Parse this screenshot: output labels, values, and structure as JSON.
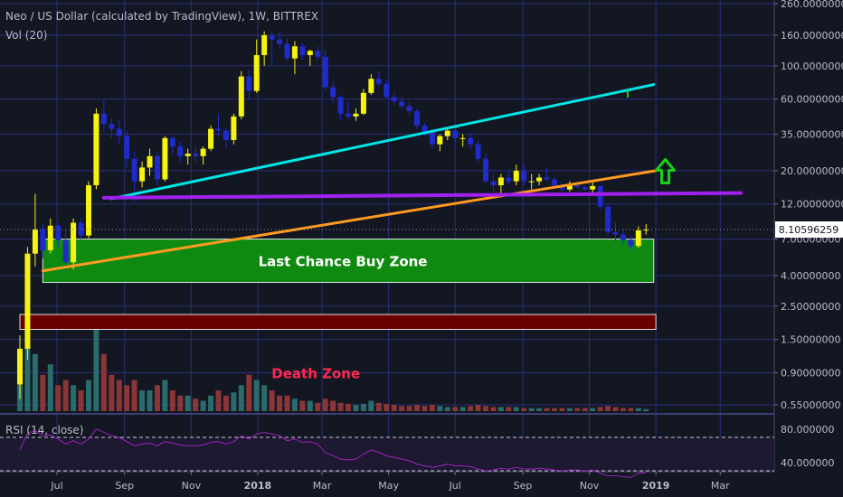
{
  "header": {
    "title": "Neo / US Dollar (calculated by TradingView), 1W, BITTREX",
    "volume_label": "Vol (20)",
    "rsi_label": "RSI (14, close)"
  },
  "chart_data": {
    "type": "candlestick",
    "y_scale": "log",
    "ylim": [
      0.52,
      260
    ],
    "y_ticks": [
      {
        "label": "260.00000000",
        "value": 260
      },
      {
        "label": "160.00000000",
        "value": 160
      },
      {
        "label": "100.00000000",
        "value": 100
      },
      {
        "label": "60.00000000",
        "value": 60
      },
      {
        "label": "35.00000000",
        "value": 35
      },
      {
        "label": "20.00000000",
        "value": 20
      },
      {
        "label": "12.00000000",
        "value": 12
      },
      {
        "label": "7.00000000",
        "value": 7
      },
      {
        "label": "4.00000000",
        "value": 4
      },
      {
        "label": "2.50000000",
        "value": 2.5
      },
      {
        "label": "1.50000000",
        "value": 1.5
      },
      {
        "label": "0.90000000",
        "value": 0.9
      },
      {
        "label": "0.55000000",
        "value": 0.55
      }
    ],
    "x_ticks": [
      {
        "label": "Jul",
        "date": "2017-07-01",
        "bold": false
      },
      {
        "label": "Sep",
        "date": "2017-09-01",
        "bold": false
      },
      {
        "label": "Nov",
        "date": "2017-11-01",
        "bold": false
      },
      {
        "label": "2018",
        "date": "2018-01-01",
        "bold": true
      },
      {
        "label": "Mar",
        "date": "2018-03-01",
        "bold": false
      },
      {
        "label": "May",
        "date": "2018-05-01",
        "bold": false
      },
      {
        "label": "Jul",
        "date": "2018-07-01",
        "bold": false
      },
      {
        "label": "Sep",
        "date": "2018-09-01",
        "bold": false
      },
      {
        "label": "Nov",
        "date": "2018-11-01",
        "bold": false
      },
      {
        "label": "2019",
        "date": "2019-01-01",
        "bold": true
      },
      {
        "label": "Mar",
        "date": "2019-03-01",
        "bold": false
      }
    ],
    "last_price": "8.10596259",
    "last_value": 8.106,
    "candles": [
      {
        "d": "2017-05-28",
        "o": 0.75,
        "h": 1.6,
        "l": 0.6,
        "c": 1.3
      },
      {
        "d": "2017-06-04",
        "o": 1.3,
        "h": 6.2,
        "l": 1.1,
        "c": 5.6
      },
      {
        "d": "2017-06-11",
        "o": 5.6,
        "h": 14,
        "l": 4.6,
        "c": 8.1
      },
      {
        "d": "2017-06-18",
        "o": 8.1,
        "h": 8.9,
        "l": 5.2,
        "c": 5.9
      },
      {
        "d": "2017-06-25",
        "o": 5.9,
        "h": 9.6,
        "l": 5.6,
        "c": 8.6
      },
      {
        "d": "2017-07-02",
        "o": 8.6,
        "h": 9.0,
        "l": 6.2,
        "c": 6.9
      },
      {
        "d": "2017-07-09",
        "o": 6.9,
        "h": 8.1,
        "l": 4.3,
        "c": 4.9
      },
      {
        "d": "2017-07-16",
        "o": 4.9,
        "h": 9.6,
        "l": 4.4,
        "c": 9.0
      },
      {
        "d": "2017-07-23",
        "o": 9.0,
        "h": 9.6,
        "l": 7.0,
        "c": 7.4
      },
      {
        "d": "2017-07-30",
        "o": 7.4,
        "h": 17,
        "l": 7.1,
        "c": 16
      },
      {
        "d": "2017-08-06",
        "o": 16,
        "h": 52,
        "l": 15,
        "c": 48
      },
      {
        "d": "2017-08-13",
        "o": 48,
        "h": 60,
        "l": 36,
        "c": 41
      },
      {
        "d": "2017-08-20",
        "o": 41,
        "h": 45,
        "l": 33,
        "c": 38
      },
      {
        "d": "2017-08-27",
        "o": 38,
        "h": 44,
        "l": 30,
        "c": 34
      },
      {
        "d": "2017-09-03",
        "o": 34,
        "h": 37,
        "l": 21,
        "c": 24
      },
      {
        "d": "2017-09-10",
        "o": 24,
        "h": 27,
        "l": 12.5,
        "c": 17
      },
      {
        "d": "2017-09-17",
        "o": 17,
        "h": 23,
        "l": 15.5,
        "c": 21
      },
      {
        "d": "2017-09-24",
        "o": 21,
        "h": 28,
        "l": 18.5,
        "c": 25
      },
      {
        "d": "2017-10-01",
        "o": 25,
        "h": 27,
        "l": 16,
        "c": 17.5
      },
      {
        "d": "2017-10-08",
        "o": 17.5,
        "h": 34,
        "l": 17,
        "c": 33
      },
      {
        "d": "2017-10-15",
        "o": 33,
        "h": 34,
        "l": 26,
        "c": 29
      },
      {
        "d": "2017-10-22",
        "o": 29,
        "h": 31,
        "l": 23,
        "c": 25
      },
      {
        "d": "2017-10-29",
        "o": 25,
        "h": 28,
        "l": 22,
        "c": 26
      },
      {
        "d": "2017-11-05",
        "o": 26,
        "h": 29,
        "l": 23,
        "c": 25
      },
      {
        "d": "2017-11-12",
        "o": 25,
        "h": 29,
        "l": 22,
        "c": 28
      },
      {
        "d": "2017-11-19",
        "o": 28,
        "h": 40,
        "l": 27,
        "c": 38
      },
      {
        "d": "2017-11-26",
        "o": 38,
        "h": 48,
        "l": 34,
        "c": 37
      },
      {
        "d": "2017-12-03",
        "o": 37,
        "h": 39,
        "l": 28,
        "c": 32
      },
      {
        "d": "2017-12-10",
        "o": 32,
        "h": 48,
        "l": 30,
        "c": 46
      },
      {
        "d": "2017-12-17",
        "o": 46,
        "h": 92,
        "l": 44,
        "c": 85
      },
      {
        "d": "2017-12-24",
        "o": 85,
        "h": 95,
        "l": 60,
        "c": 68
      },
      {
        "d": "2017-12-31",
        "o": 68,
        "h": 150,
        "l": 66,
        "c": 118
      },
      {
        "d": "2018-01-07",
        "o": 118,
        "h": 170,
        "l": 100,
        "c": 160
      },
      {
        "d": "2018-01-14",
        "o": 160,
        "h": 168,
        "l": 100,
        "c": 150
      },
      {
        "d": "2018-01-21",
        "o": 150,
        "h": 168,
        "l": 130,
        "c": 140
      },
      {
        "d": "2018-01-28",
        "o": 140,
        "h": 152,
        "l": 108,
        "c": 112
      },
      {
        "d": "2018-02-04",
        "o": 112,
        "h": 146,
        "l": 88,
        "c": 135
      },
      {
        "d": "2018-02-11",
        "o": 135,
        "h": 142,
        "l": 110,
        "c": 118
      },
      {
        "d": "2018-02-18",
        "o": 118,
        "h": 128,
        "l": 100,
        "c": 126
      },
      {
        "d": "2018-02-25",
        "o": 126,
        "h": 135,
        "l": 108,
        "c": 115
      },
      {
        "d": "2018-03-04",
        "o": 115,
        "h": 128,
        "l": 68,
        "c": 72
      },
      {
        "d": "2018-03-11",
        "o": 72,
        "h": 78,
        "l": 56,
        "c": 62
      },
      {
        "d": "2018-03-18",
        "o": 62,
        "h": 64,
        "l": 44,
        "c": 48
      },
      {
        "d": "2018-03-25",
        "o": 48,
        "h": 58,
        "l": 44,
        "c": 46
      },
      {
        "d": "2018-04-01",
        "o": 46,
        "h": 52,
        "l": 43,
        "c": 48
      },
      {
        "d": "2018-04-08",
        "o": 48,
        "h": 70,
        "l": 47,
        "c": 66
      },
      {
        "d": "2018-04-15",
        "o": 66,
        "h": 88,
        "l": 64,
        "c": 82
      },
      {
        "d": "2018-04-22",
        "o": 82,
        "h": 92,
        "l": 72,
        "c": 76
      },
      {
        "d": "2018-04-29",
        "o": 76,
        "h": 82,
        "l": 60,
        "c": 62
      },
      {
        "d": "2018-05-06",
        "o": 62,
        "h": 66,
        "l": 55,
        "c": 58
      },
      {
        "d": "2018-05-13",
        "o": 58,
        "h": 62,
        "l": 52,
        "c": 54
      },
      {
        "d": "2018-05-20",
        "o": 54,
        "h": 58,
        "l": 47,
        "c": 50
      },
      {
        "d": "2018-05-27",
        "o": 50,
        "h": 52,
        "l": 38,
        "c": 40
      },
      {
        "d": "2018-06-03",
        "o": 40,
        "h": 42,
        "l": 34,
        "c": 36
      },
      {
        "d": "2018-06-10",
        "o": 36,
        "h": 38,
        "l": 28,
        "c": 30
      },
      {
        "d": "2018-06-17",
        "o": 30,
        "h": 35,
        "l": 27,
        "c": 34
      },
      {
        "d": "2018-06-24",
        "o": 34,
        "h": 38,
        "l": 32,
        "c": 37
      },
      {
        "d": "2018-07-01",
        "o": 37,
        "h": 38,
        "l": 30,
        "c": 33
      },
      {
        "d": "2018-07-08",
        "o": 33,
        "h": 35,
        "l": 29,
        "c": 33
      },
      {
        "d": "2018-07-15",
        "o": 33,
        "h": 36,
        "l": 28,
        "c": 30
      },
      {
        "d": "2018-07-22",
        "o": 30,
        "h": 32,
        "l": 23,
        "c": 24
      },
      {
        "d": "2018-07-29",
        "o": 24,
        "h": 26,
        "l": 16.5,
        "c": 17
      },
      {
        "d": "2018-08-05",
        "o": 17,
        "h": 19,
        "l": 14.5,
        "c": 16
      },
      {
        "d": "2018-08-12",
        "o": 16,
        "h": 19,
        "l": 14,
        "c": 18
      },
      {
        "d": "2018-08-19",
        "o": 18,
        "h": 20,
        "l": 16,
        "c": 17
      },
      {
        "d": "2018-08-26",
        "o": 17,
        "h": 22,
        "l": 16,
        "c": 20
      },
      {
        "d": "2018-09-02",
        "o": 20,
        "h": 22,
        "l": 16,
        "c": 17
      },
      {
        "d": "2018-09-09",
        "o": 17,
        "h": 19,
        "l": 15,
        "c": 17
      },
      {
        "d": "2018-09-16",
        "o": 17,
        "h": 19,
        "l": 16,
        "c": 18
      },
      {
        "d": "2018-09-23",
        "o": 18,
        "h": 21,
        "l": 17,
        "c": 17.5
      },
      {
        "d": "2018-09-30",
        "o": 17.5,
        "h": 18,
        "l": 15.5,
        "c": 16
      },
      {
        "d": "2018-10-07",
        "o": 16,
        "h": 16.5,
        "l": 14.5,
        "c": 15
      },
      {
        "d": "2018-10-14",
        "o": 15,
        "h": 17,
        "l": 14.5,
        "c": 16
      },
      {
        "d": "2018-10-21",
        "o": 16,
        "h": 16.5,
        "l": 15.2,
        "c": 15.5
      },
      {
        "d": "2018-10-28",
        "o": 15.5,
        "h": 16,
        "l": 14.8,
        "c": 15
      },
      {
        "d": "2018-11-04",
        "o": 15,
        "h": 17,
        "l": 14.2,
        "c": 15.8
      },
      {
        "d": "2018-11-11",
        "o": 15.8,
        "h": 16,
        "l": 11,
        "c": 11.5
      },
      {
        "d": "2018-11-18",
        "o": 11.5,
        "h": 12,
        "l": 7.4,
        "c": 7.8
      },
      {
        "d": "2018-11-25",
        "o": 7.8,
        "h": 9,
        "l": 6.8,
        "c": 7.5
      },
      {
        "d": "2018-12-02",
        "o": 7.5,
        "h": 8.2,
        "l": 6.5,
        "c": 6.9
      },
      {
        "d": "2018-12-09",
        "o": 6.9,
        "h": 7.3,
        "l": 6.0,
        "c": 6.3
      },
      {
        "d": "2018-12-16",
        "o": 6.3,
        "h": 8.5,
        "l": 6.1,
        "c": 8.0
      },
      {
        "d": "2018-12-23",
        "o": 8.0,
        "h": 8.8,
        "l": 7.5,
        "c": 8.1
      }
    ],
    "volume": [
      0.25,
      1.0,
      0.55,
      0.35,
      0.45,
      0.25,
      0.3,
      0.25,
      0.2,
      0.3,
      0.85,
      0.55,
      0.35,
      0.3,
      0.25,
      0.3,
      0.2,
      0.2,
      0.25,
      0.3,
      0.2,
      0.15,
      0.15,
      0.12,
      0.1,
      0.15,
      0.2,
      0.15,
      0.18,
      0.25,
      0.35,
      0.3,
      0.25,
      0.2,
      0.15,
      0.15,
      0.12,
      0.1,
      0.1,
      0.08,
      0.12,
      0.1,
      0.08,
      0.07,
      0.06,
      0.07,
      0.1,
      0.08,
      0.07,
      0.06,
      0.05,
      0.05,
      0.06,
      0.05,
      0.06,
      0.05,
      0.04,
      0.04,
      0.04,
      0.05,
      0.06,
      0.05,
      0.04,
      0.04,
      0.04,
      0.04,
      0.03,
      0.03,
      0.03,
      0.03,
      0.03,
      0.03,
      0.03,
      0.03,
      0.03,
      0.03,
      0.04,
      0.05,
      0.04,
      0.03,
      0.03,
      0.03,
      0.02
    ],
    "rsi": {
      "ticks": [
        {
          "label": "80.000000",
          "value": 80
        },
        {
          "label": "40.000000",
          "value": 40
        }
      ],
      "upper_band": 70,
      "lower_band": 30,
      "values": [
        55,
        75,
        78,
        72,
        73,
        68,
        62,
        66,
        62,
        68,
        80,
        76,
        72,
        70,
        65,
        60,
        62,
        63,
        60,
        65,
        63,
        61,
        60,
        60,
        61,
        64,
        65,
        62,
        65,
        72,
        68,
        74,
        76,
        74,
        72,
        66,
        68,
        64,
        65,
        62,
        52,
        48,
        44,
        43,
        44,
        50,
        55,
        52,
        48,
        46,
        44,
        42,
        38,
        36,
        34,
        36,
        38,
        36,
        36,
        35,
        32,
        30,
        31,
        33,
        32,
        34,
        32,
        32,
        33,
        32,
        31,
        30,
        31,
        31,
        30,
        31,
        27,
        24,
        24,
        23,
        22,
        27,
        28
      ]
    },
    "annotations": [
      {
        "type": "zone",
        "label": "Last Chance Buy Zone",
        "low": 3.6,
        "high": 7.0,
        "start": "2017-06-18",
        "end": "2018-12-30",
        "fill": "#0f8a10",
        "border": "#dfe3ea",
        "text_color": "#ffffff"
      },
      {
        "type": "zone",
        "label": "",
        "low": 1.75,
        "high": 2.2,
        "start": "2017-05-28",
        "end": "2019-01-01",
        "fill": "#6b0000",
        "border": "#dfe3ea"
      },
      {
        "type": "label",
        "text": "Death Zone",
        "value": 0.9,
        "date": "2018-02-20",
        "color": "#ff2a4d"
      },
      {
        "type": "trendline",
        "color": "#00e5e5",
        "from": {
          "d": "2017-08-20",
          "v": 13
        },
        "to": {
          "d": "2018-12-30",
          "v": 75
        }
      },
      {
        "type": "trendline",
        "color": "#ff9a1f",
        "from": {
          "d": "2017-06-18",
          "v": 4.3
        },
        "to": {
          "d": "2019-01-01",
          "v": 20
        }
      },
      {
        "type": "trendline",
        "color": "#a020f0",
        "from": {
          "d": "2017-08-13",
          "v": 13.2
        },
        "to": {
          "d": "2019-03-20",
          "v": 14.2
        }
      },
      {
        "type": "arrow",
        "color": "#14d214",
        "date": "2019-01-03",
        "value": 18
      }
    ],
    "colors": {
      "up": "#f5f30f",
      "down": "#1f2cc9",
      "vol_up": "#2a6b6b",
      "vol_down": "#8a3636",
      "rsi": "#a020c0",
      "grid": "#2b2e7a"
    }
  }
}
